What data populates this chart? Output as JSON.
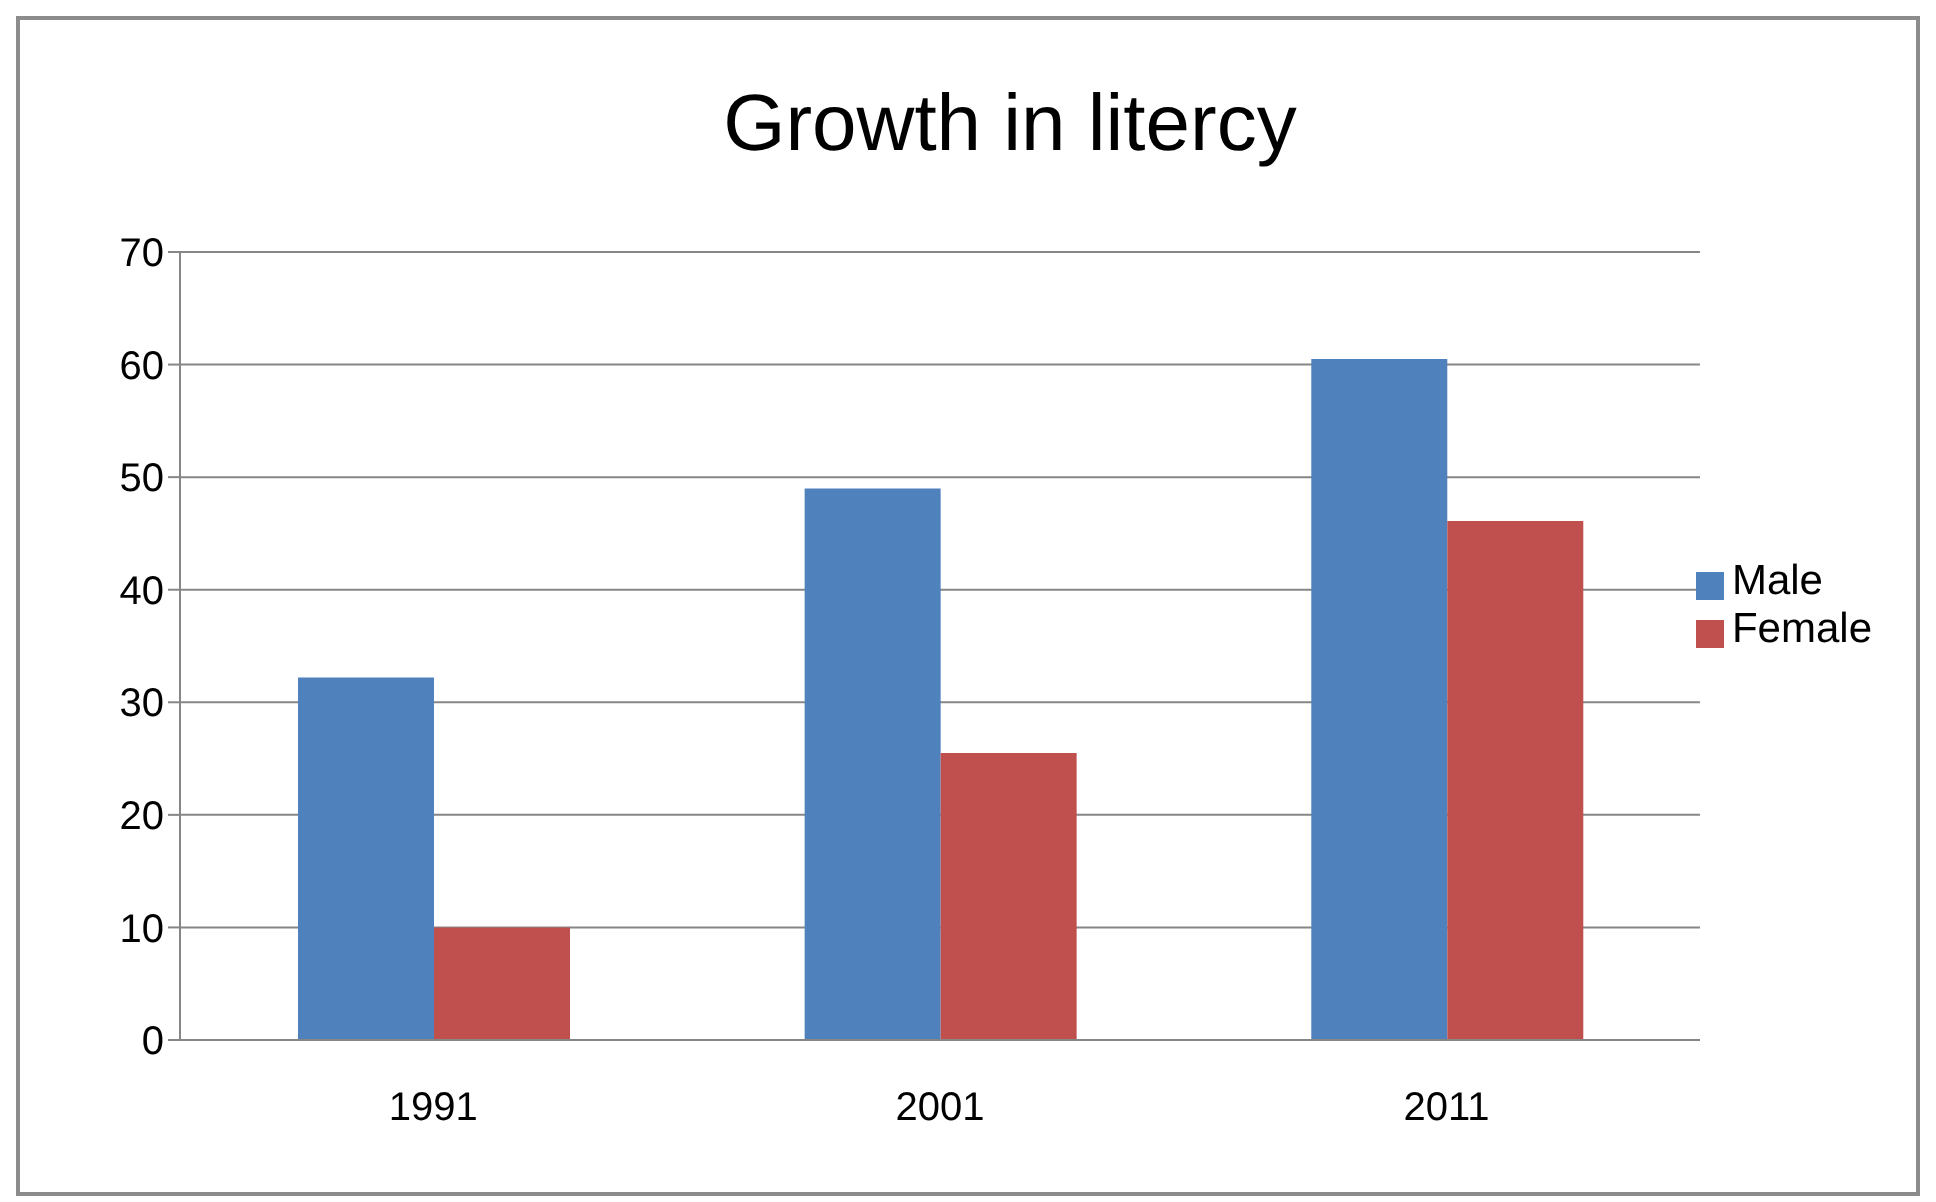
{
  "chart_data": {
    "type": "bar",
    "title": "Growth in litercy",
    "categories": [
      "1991",
      "2001",
      "2011"
    ],
    "series": [
      {
        "name": "Male",
        "color": "#4f81bd",
        "values": [
          32.2,
          49,
          60.5
        ]
      },
      {
        "name": "Female",
        "color": "#c0504d",
        "values": [
          10,
          25.5,
          46.1
        ]
      }
    ],
    "ylim": [
      0,
      70
    ],
    "yticks": [
      0,
      10,
      20,
      30,
      40,
      50,
      60,
      70
    ],
    "grid": "y",
    "legend": "right"
  }
}
